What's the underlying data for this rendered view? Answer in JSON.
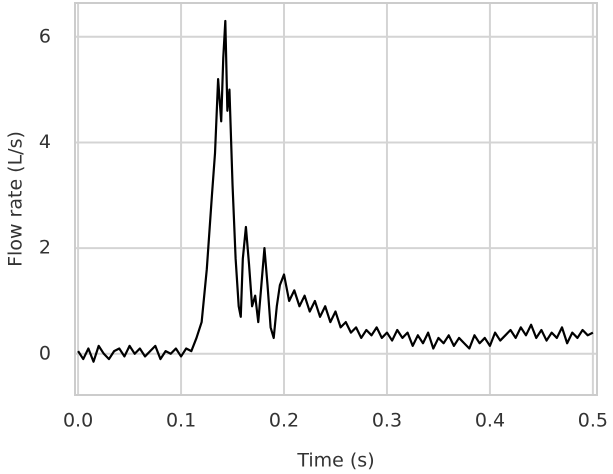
{
  "chart_data": {
    "type": "line",
    "xlabel": "Time (s)",
    "ylabel": "Flow rate (L/s)",
    "x": [
      0,
      0.005,
      0.01,
      0.015,
      0.02,
      0.025,
      0.03,
      0.035,
      0.04,
      0.045,
      0.05,
      0.055,
      0.06,
      0.065,
      0.07,
      0.075,
      0.08,
      0.085,
      0.09,
      0.095,
      0.1,
      0.105,
      0.11,
      0.115,
      0.12,
      0.125,
      0.13,
      0.133,
      0.136,
      0.139,
      0.141,
      0.143,
      0.145,
      0.147,
      0.15,
      0.153,
      0.156,
      0.158,
      0.16,
      0.163,
      0.166,
      0.169,
      0.172,
      0.175,
      0.178,
      0.181,
      0.184,
      0.187,
      0.19,
      0.193,
      0.196,
      0.2,
      0.205,
      0.21,
      0.215,
      0.22,
      0.225,
      0.23,
      0.235,
      0.24,
      0.245,
      0.25,
      0.255,
      0.26,
      0.265,
      0.27,
      0.275,
      0.28,
      0.285,
      0.29,
      0.295,
      0.3,
      0.305,
      0.31,
      0.315,
      0.32,
      0.325,
      0.33,
      0.335,
      0.34,
      0.345,
      0.35,
      0.355,
      0.36,
      0.365,
      0.37,
      0.375,
      0.38,
      0.385,
      0.39,
      0.395,
      0.4,
      0.405,
      0.41,
      0.415,
      0.42,
      0.425,
      0.43,
      0.435,
      0.44,
      0.445,
      0.45,
      0.455,
      0.46,
      0.465,
      0.47,
      0.475,
      0.48,
      0.485,
      0.49,
      0.495,
      0.5
    ],
    "series": [
      {
        "color": "#000000",
        "values": [
          0.05,
          -0.1,
          0.1,
          -0.15,
          0.15,
          0,
          -0.1,
          0.05,
          0.1,
          -0.05,
          0.15,
          0,
          0.1,
          -0.05,
          0.05,
          0.15,
          -0.1,
          0.05,
          0,
          0.1,
          -0.05,
          0.1,
          0.05,
          0.3,
          0.6,
          1.6,
          3.0,
          3.8,
          5.2,
          4.4,
          5.6,
          6.3,
          4.6,
          5.0,
          3.2,
          1.8,
          0.9,
          0.7,
          1.8,
          2.4,
          1.7,
          0.9,
          1.1,
          0.6,
          1.3,
          2.0,
          1.3,
          0.5,
          0.3,
          0.9,
          1.3,
          1.5,
          1.0,
          1.2,
          0.9,
          1.1,
          0.8,
          1.0,
          0.7,
          0.9,
          0.6,
          0.8,
          0.5,
          0.6,
          0.4,
          0.5,
          0.3,
          0.45,
          0.35,
          0.5,
          0.3,
          0.4,
          0.25,
          0.45,
          0.3,
          0.4,
          0.15,
          0.35,
          0.2,
          0.4,
          0.1,
          0.3,
          0.2,
          0.35,
          0.15,
          0.3,
          0.2,
          0.1,
          0.35,
          0.2,
          0.3,
          0.15,
          0.4,
          0.25,
          0.35,
          0.45,
          0.3,
          0.5,
          0.35,
          0.55,
          0.3,
          0.45,
          0.25,
          0.4,
          0.3,
          0.5,
          0.2,
          0.4,
          0.3,
          0.45,
          0.35,
          0.4
        ]
      }
    ],
    "xlim": [
      -0.003,
      0.504
    ],
    "ylim": [
      -0.78,
      6.64
    ],
    "xticks": [
      {
        "value": 0,
        "label": "0.0"
      },
      0.1,
      0.2,
      0.3,
      0.4,
      0.5
    ],
    "yticks": [
      0,
      2,
      4,
      6
    ],
    "grid": true
  }
}
